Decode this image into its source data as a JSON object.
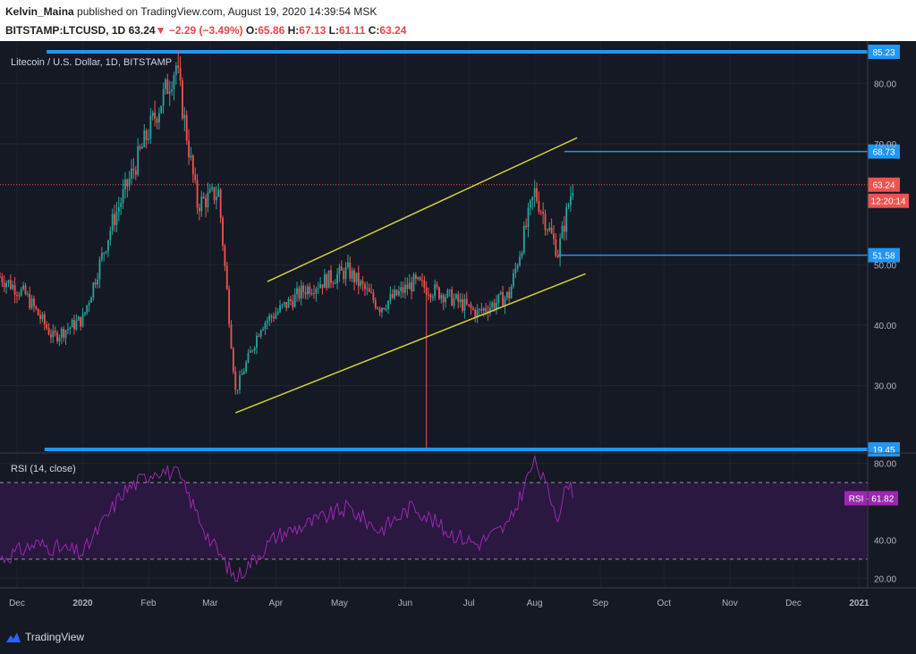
{
  "header": {
    "author": "Kelvin_Maina",
    "published_text": "published on TradingView.com, August 19, 2020 14:39:54 MSK",
    "symbol": "BITSTAMP:LTCUSD, 1D",
    "price": "63.24",
    "change_arrow": "▼",
    "change": "−2.29 (−3.49%)",
    "open_label": "O:",
    "open": "65.86",
    "high_label": "H:",
    "high": "67.13",
    "low_label": "L:",
    "low": "61.11",
    "close_label": "C:",
    "close": "63.24"
  },
  "main_pane": {
    "legend": "Litecoin / U.S. Dollar, 1D, BITSTAMP",
    "price_ticks": [
      "30.00",
      "40.00",
      "50.00",
      "70.00",
      "80.00"
    ],
    "last_price_label": "63.24",
    "countdown_label": "12:20:14",
    "level_labels": [
      "85.23",
      "68.73",
      "51.58",
      "19.45"
    ]
  },
  "rsi_pane": {
    "legend": "RSI (14, close)",
    "ticks": [
      "20.00",
      "40.00",
      "80.00"
    ],
    "value_label": "RSI - 61.82"
  },
  "time_axis": [
    "Dec",
    "2020",
    "Feb",
    "Mar",
    "Apr",
    "May",
    "Jun",
    "Jul",
    "Aug",
    "Sep",
    "Oct",
    "Nov",
    "Dec",
    "2021"
  ],
  "footer": {
    "brand": "TradingView"
  },
  "colors": {
    "background": "#151924",
    "up": "#26a69a",
    "down": "#ef5350",
    "level_line": "#2196f3",
    "channel": "#d4cf38",
    "rsi": "#9c27b0",
    "last_price": "#ef5350"
  },
  "chart_data": {
    "type": "candlestick",
    "title": "Litecoin / U.S. Dollar, 1D, BITSTAMP",
    "x_unit": "date",
    "x_range": [
      "2019-11-23",
      "2021-01-05"
    ],
    "y_range": [
      19,
      87
    ],
    "series": [
      {
        "name": "LTCUSD",
        "x": [
          "2019-11-23",
          "2019-12-05",
          "2019-12-18",
          "2020-01-01",
          "2020-01-15",
          "2020-02-01",
          "2020-02-14",
          "2020-02-24",
          "2020-03-05",
          "2020-03-13",
          "2020-03-25",
          "2020-04-15",
          "2020-05-05",
          "2020-05-20",
          "2020-06-05",
          "2020-06-20",
          "2020-07-05",
          "2020-07-20",
          "2020-08-01",
          "2020-08-12",
          "2020-08-19"
        ],
        "values": [
          48,
          45,
          38,
          41,
          57,
          72,
          83,
          60,
          62,
          29,
          40,
          46,
          49,
          43,
          47,
          45,
          42,
          45,
          62,
          52,
          63.24
        ]
      }
    ],
    "horizontal_levels": [
      {
        "label": "85.23",
        "value": 85.23
      },
      {
        "label": "68.73",
        "value": 68.73
      },
      {
        "label": "51.58",
        "value": 51.58
      },
      {
        "label": "19.45",
        "value": 19.45
      }
    ],
    "channel_lines": [
      {
        "from": [
          "2020-03-13",
          25.5
        ],
        "to": [
          "2020-08-25",
          48.5
        ]
      },
      {
        "from": [
          "2020-03-28",
          47.2
        ],
        "to": [
          "2020-08-21",
          71.0
        ]
      }
    ],
    "last_price": 63.24,
    "rsi": {
      "name": "RSI (14, close)",
      "y_range": [
        15,
        85
      ],
      "bands": [
        30,
        70
      ],
      "x": [
        "2019-11-23",
        "2019-12-10",
        "2020-01-01",
        "2020-01-20",
        "2020-02-05",
        "2020-02-15",
        "2020-03-01",
        "2020-03-13",
        "2020-04-01",
        "2020-04-20",
        "2020-05-05",
        "2020-05-20",
        "2020-06-05",
        "2020-06-20",
        "2020-07-05",
        "2020-07-20",
        "2020-08-01",
        "2020-08-12",
        "2020-08-17",
        "2020-08-19"
      ],
      "values": [
        30,
        38,
        33,
        65,
        77,
        74,
        40,
        20,
        42,
        50,
        57,
        45,
        58,
        45,
        38,
        48,
        82,
        53,
        71,
        61.82
      ]
    }
  }
}
